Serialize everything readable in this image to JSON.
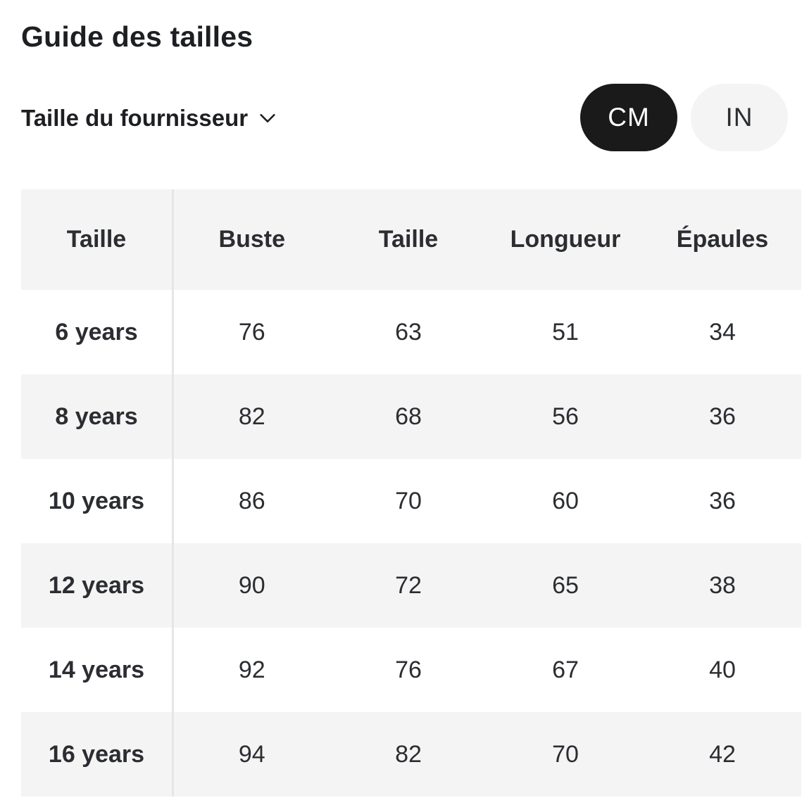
{
  "title": "Guide des tailles",
  "size_selector": {
    "label": "Taille du fournisseur",
    "icon": "chevron-down-icon"
  },
  "units": {
    "options": [
      "CM",
      "IN"
    ],
    "selected": "CM",
    "active_color": "#1a1a1a",
    "inactive_color": "#f4f4f4"
  },
  "table": {
    "headers": [
      "Taille",
      "Buste",
      "Taille",
      "Longueur",
      "Épaules"
    ],
    "rows": [
      [
        "6 years",
        "76",
        "63",
        "51",
        "34"
      ],
      [
        "8 years",
        "82",
        "68",
        "56",
        "36"
      ],
      [
        "10 years",
        "86",
        "70",
        "60",
        "36"
      ],
      [
        "12 years",
        "90",
        "72",
        "65",
        "38"
      ],
      [
        "14 years",
        "92",
        "76",
        "67",
        "40"
      ],
      [
        "16 years",
        "94",
        "82",
        "70",
        "42"
      ]
    ]
  }
}
